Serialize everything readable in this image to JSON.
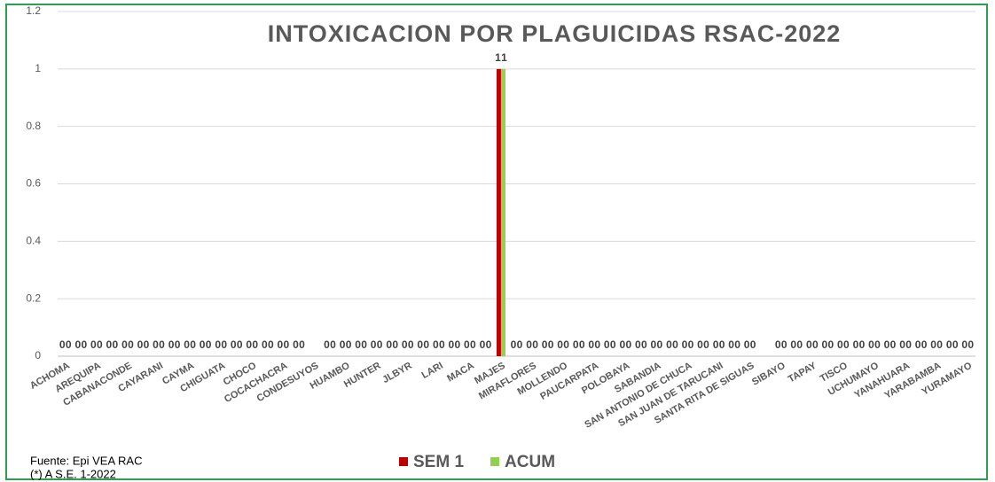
{
  "chart_data": {
    "type": "bar",
    "title": "INTOXICACION POR PLAGUICIDAS RSAC-2022",
    "categories": [
      "ACHOMA",
      null,
      "AREQUIPA",
      null,
      "CABANACONDE",
      null,
      "CAYARANI",
      null,
      "CAYMA",
      null,
      "CHIGUATA",
      null,
      "CHOCO",
      null,
      "COCACHACRA",
      null,
      "CONDESUYOS",
      null,
      "HUAMBO",
      null,
      "HUNTER",
      null,
      "JLBYR",
      null,
      "LARI",
      null,
      "MACA",
      null,
      "MAJES",
      null,
      "MIRAFLORES",
      null,
      "MOLLENDO",
      null,
      "PAUCARPATA",
      null,
      "POLOBAYA",
      null,
      "SABANDIA",
      null,
      "SAN ANTONIO DE CHUCA",
      null,
      "SAN JUAN DE TARUCANI",
      null,
      "SANTA RITA DE SIGUAS",
      null,
      "SIBAYO",
      null,
      "TAPAY",
      null,
      "TISCO",
      null,
      "UCHUMAYO",
      null,
      "YANAHUARA",
      null,
      "YARABAMBA",
      null,
      "YURAMAYO"
    ],
    "series": [
      {
        "name": "SEM 1",
        "color": "#c00000",
        "values": [
          0,
          0,
          0,
          0,
          0,
          0,
          0,
          0,
          0,
          0,
          0,
          0,
          0,
          0,
          0,
          0,
          null,
          0,
          0,
          0,
          0,
          0,
          0,
          0,
          0,
          0,
          0,
          0,
          1,
          0,
          0,
          0,
          0,
          0,
          0,
          0,
          0,
          0,
          0,
          0,
          0,
          0,
          0,
          0,
          0,
          null,
          0,
          0,
          0,
          0,
          0,
          0,
          0,
          0,
          0,
          0,
          0,
          0,
          0
        ]
      },
      {
        "name": "ACUM",
        "color": "#92d050",
        "values": [
          0,
          0,
          0,
          0,
          0,
          0,
          0,
          0,
          0,
          0,
          0,
          0,
          0,
          0,
          0,
          0,
          null,
          0,
          0,
          0,
          0,
          0,
          0,
          0,
          0,
          0,
          0,
          0,
          1,
          0,
          0,
          0,
          0,
          0,
          0,
          0,
          0,
          0,
          0,
          0,
          0,
          0,
          0,
          0,
          0,
          null,
          0,
          0,
          0,
          0,
          0,
          0,
          0,
          0,
          0,
          0,
          0,
          0,
          0
        ]
      }
    ],
    "ylim": [
      0,
      1.2
    ],
    "yticks": [
      0,
      0.2,
      0.4,
      0.6,
      0.8,
      1,
      1.2
    ],
    "grid": true,
    "legend": "bottom",
    "notes": [
      "Fuente:  Epi VEA RAC",
      "(*) A S.E. 1-2022"
    ]
  }
}
